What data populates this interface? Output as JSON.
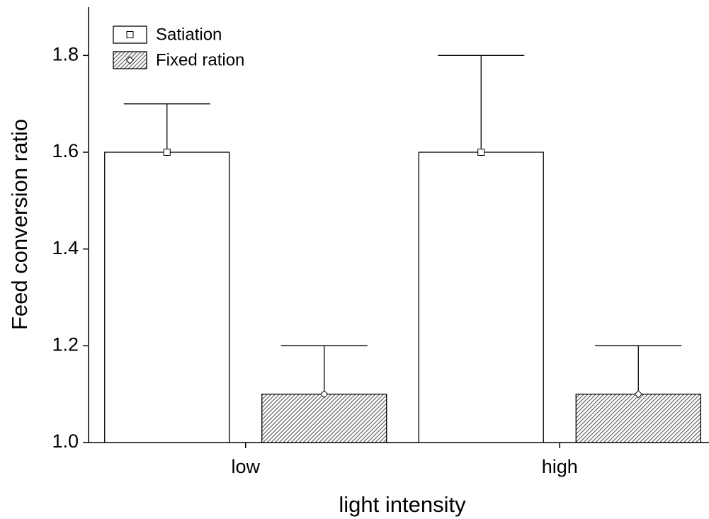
{
  "chart_data": {
    "type": "bar",
    "x_label": "light intensity",
    "y_label": "Feed conversion ratio",
    "categories": [
      "low",
      "high"
    ],
    "series": [
      {
        "name": "Satiation",
        "color": "#ffffff",
        "marker": "square",
        "values": [
          1.6,
          1.6
        ],
        "errors": [
          0.1,
          0.2
        ]
      },
      {
        "name": "Fixed ration",
        "color": "#ffffff",
        "pattern": "hatch",
        "marker": "diamond",
        "values": [
          1.1,
          1.1
        ],
        "errors": [
          0.1,
          0.1
        ]
      }
    ],
    "ylim": [
      1.0,
      1.9
    ],
    "yticks": [
      {
        "value": 1,
        "label": "1.0"
      },
      1.2,
      1.4,
      1.6,
      1.8
    ],
    "legend": "upper left"
  }
}
